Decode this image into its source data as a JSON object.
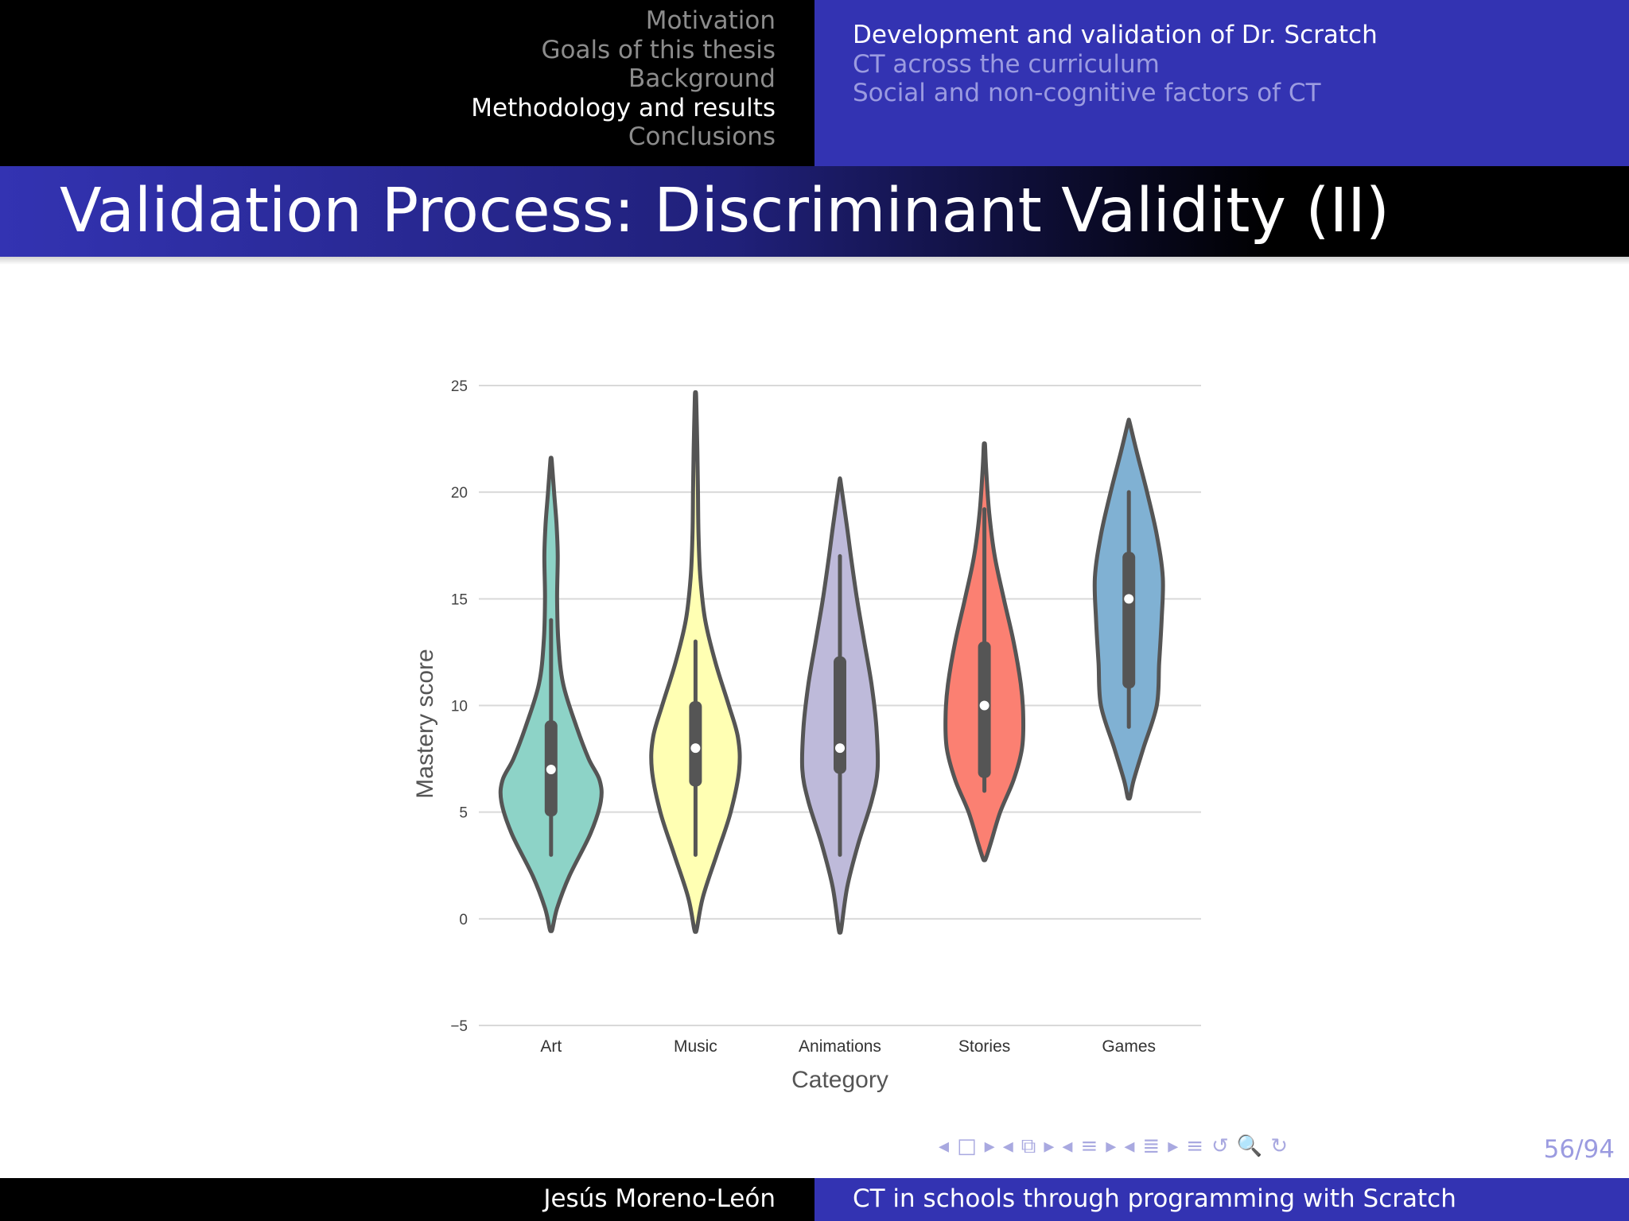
{
  "header": {
    "sections": [
      {
        "label": "Motivation",
        "active": false
      },
      {
        "label": "Goals of this thesis",
        "active": false
      },
      {
        "label": "Background",
        "active": false
      },
      {
        "label": "Methodology and results",
        "active": true
      },
      {
        "label": "Conclusions",
        "active": false
      }
    ],
    "subsections": [
      {
        "label": "Development and validation of Dr. Scratch",
        "active": true
      },
      {
        "label": "CT across the curriculum",
        "active": false
      },
      {
        "label": "Social and non-cognitive factors of CT",
        "active": false
      }
    ]
  },
  "frame_title": "Validation Process: Discriminant Validity (II)",
  "chart_data": {
    "type": "violin",
    "xlabel": "Category",
    "ylabel": "Mastery score",
    "ylim": [
      -5,
      25
    ],
    "yticks": [
      -5,
      0,
      5,
      10,
      15,
      20,
      25
    ],
    "grid": true,
    "categories": [
      "Art",
      "Music",
      "Animations",
      "Stories",
      "Games"
    ],
    "colors": [
      "#8dd3c7",
      "#ffffb3",
      "#bebada",
      "#fb8072",
      "#80b1d3"
    ],
    "series": [
      {
        "category": "Art",
        "min": -0.5,
        "max": 21.5,
        "whisker_low": 3,
        "q1": 4.8,
        "median": 7,
        "q3": 9.3,
        "whisker_high": 14,
        "density": [
          [
            -0.5,
            0.02
          ],
          [
            0.5,
            0.1
          ],
          [
            2,
            0.3
          ],
          [
            4,
            0.65
          ],
          [
            5.5,
            0.82
          ],
          [
            6.5,
            0.8
          ],
          [
            7.5,
            0.62
          ],
          [
            9,
            0.42
          ],
          [
            11,
            0.2
          ],
          [
            13,
            0.12
          ],
          [
            15,
            0.1
          ],
          [
            17,
            0.11
          ],
          [
            18.5,
            0.09
          ],
          [
            20,
            0.05
          ],
          [
            21.5,
            0.01
          ]
        ]
      },
      {
        "category": "Music",
        "min": -0.5,
        "max": 24.5,
        "whisker_low": 3,
        "q1": 6.2,
        "median": 8,
        "q3": 10.2,
        "whisker_high": 13,
        "density": [
          [
            -0.5,
            0.02
          ],
          [
            1,
            0.12
          ],
          [
            3,
            0.35
          ],
          [
            5,
            0.58
          ],
          [
            7,
            0.72
          ],
          [
            8.5,
            0.7
          ],
          [
            10,
            0.55
          ],
          [
            12,
            0.33
          ],
          [
            14,
            0.16
          ],
          [
            16,
            0.08
          ],
          [
            18,
            0.05
          ],
          [
            20,
            0.04
          ],
          [
            22,
            0.03
          ],
          [
            24.5,
            0.01
          ]
        ]
      },
      {
        "category": "Animations",
        "min": -0.5,
        "max": 20.5,
        "whisker_low": 3,
        "q1": 6.8,
        "median": 8,
        "q3": 12.3,
        "whisker_high": 17,
        "density": [
          [
            -0.5,
            0.02
          ],
          [
            1.5,
            0.12
          ],
          [
            3.5,
            0.3
          ],
          [
            5.5,
            0.52
          ],
          [
            7,
            0.62
          ],
          [
            9,
            0.6
          ],
          [
            11,
            0.52
          ],
          [
            13,
            0.4
          ],
          [
            15,
            0.28
          ],
          [
            17,
            0.18
          ],
          [
            18.5,
            0.11
          ],
          [
            20.5,
            0.01
          ]
        ]
      },
      {
        "category": "Stories",
        "min": 2.8,
        "max": 22.2,
        "whisker_low": 6,
        "q1": 6.6,
        "median": 10,
        "q3": 13,
        "whisker_high": 19.2,
        "density": [
          [
            2.8,
            0.02
          ],
          [
            3.5,
            0.1
          ],
          [
            5,
            0.26
          ],
          [
            6.5,
            0.48
          ],
          [
            8,
            0.62
          ],
          [
            9.5,
            0.64
          ],
          [
            11,
            0.6
          ],
          [
            13,
            0.48
          ],
          [
            15,
            0.32
          ],
          [
            17,
            0.17
          ],
          [
            19,
            0.08
          ],
          [
            21,
            0.03
          ],
          [
            22.2,
            0.01
          ]
        ]
      },
      {
        "category": "Games",
        "min": 5.7,
        "max": 23.3,
        "whisker_low": 9,
        "q1": 10.8,
        "median": 15,
        "q3": 17.2,
        "whisker_high": 20,
        "density": [
          [
            5.7,
            0.02
          ],
          [
            6.5,
            0.08
          ],
          [
            8,
            0.24
          ],
          [
            10,
            0.46
          ],
          [
            12,
            0.5
          ],
          [
            14,
            0.54
          ],
          [
            16,
            0.56
          ],
          [
            18,
            0.46
          ],
          [
            20,
            0.3
          ],
          [
            22,
            0.12
          ],
          [
            23.3,
            0.01
          ]
        ]
      }
    ]
  },
  "navigation": {
    "symbols": [
      "◂",
      "□",
      "▸",
      "◂",
      "⧉",
      "▸",
      "◂",
      "≡",
      "▸",
      "◂",
      "≣",
      "▸",
      "≡",
      "↺",
      "🔍",
      "↻"
    ],
    "page": "56/94"
  },
  "footer": {
    "author": "Jesús Moreno-León",
    "title": "CT in schools through programming with Scratch"
  }
}
